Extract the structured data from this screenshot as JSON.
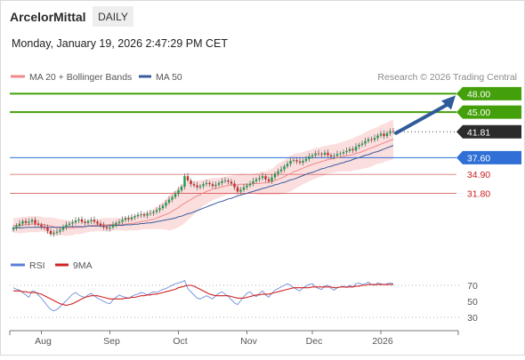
{
  "header": {
    "instrument": "ArcelorMittal",
    "period": "DAILY",
    "datetime": "Monday, January 19, 2026 2:47:29 PM CET"
  },
  "legend": {
    "ma20_label": "MA 20 + Bollinger Bands",
    "ma50_label": "MA 50",
    "credit": "Research © 2026 Trading Central",
    "rsi_label": "RSI",
    "rsi_ma_label": "9MA"
  },
  "colors": {
    "target_green": "#44a00a",
    "pivot_blue": "#2f6fd6",
    "support_red": "#c91d1d",
    "last_price_dark": "#2b2b2b",
    "ma20_red": "#f08a8a",
    "bollinger_fill": "#fbdada",
    "ma50_blue": "#3a5c9e",
    "arrow_blue": "#2f5b9a",
    "rsi_blue": "#5b7fd6",
    "rsi_ma_red": "#d22222",
    "candle_up": "#1e9b4a",
    "candle_down": "#cc2a2a"
  },
  "chart_data": [
    {
      "type": "candlestick",
      "title": "ArcelorMittal",
      "ylim": [
        22.5,
        49.5
      ],
      "x_tick_labels": [
        "Aug",
        "Sep",
        "Oct",
        "Nov",
        "Dec",
        "2026"
      ],
      "x_tick_positions": [
        9,
        31,
        53,
        75,
        96,
        118
      ],
      "close": [
        26.2,
        26.5,
        26.9,
        27.3,
        27.0,
        27.2,
        27.5,
        26.9,
        26.7,
        26.4,
        26.2,
        25.7,
        25.2,
        25.4,
        25.6,
        25.9,
        26.3,
        26.7,
        26.9,
        27.1,
        27.4,
        27.6,
        27.2,
        27.0,
        27.3,
        27.5,
        27.2,
        26.9,
        26.6,
        26.3,
        26.1,
        26.3,
        26.7,
        27.0,
        27.2,
        27.5,
        27.8,
        27.6,
        27.9,
        28.1,
        28.3,
        28.4,
        28.2,
        28.5,
        28.6,
        28.8,
        29.1,
        29.4,
        29.8,
        30.3,
        30.8,
        31.2,
        31.7,
        32.3,
        32.9,
        34.6,
        33.9,
        33.3,
        33.1,
        32.8,
        33.0,
        33.3,
        33.5,
        33.3,
        33.0,
        33.2,
        33.5,
        33.8,
        33.9,
        33.7,
        33.4,
        32.8,
        32.1,
        32.4,
        32.8,
        33.1,
        33.4,
        33.8,
        34.1,
        34.3,
        34.6,
        34.1,
        33.8,
        34.4,
        35.0,
        35.4,
        35.7,
        36.2,
        36.6,
        37.1,
        37.2,
        37.0,
        36.8,
        37.1,
        37.4,
        37.8,
        38.0,
        38.3,
        38.2,
        38.1,
        38.4,
        38.0,
        37.8,
        37.9,
        38.2,
        38.3,
        38.5,
        38.7,
        39.0,
        38.8,
        39.4,
        39.7,
        39.9,
        40.3,
        40.6,
        40.5,
        40.8,
        41.2,
        41.5,
        41.1,
        41.6,
        41.9,
        41.81
      ],
      "ma20": [
        26.6,
        26.6,
        26.6,
        26.7,
        26.7,
        26.8,
        26.8,
        26.8,
        26.8,
        26.8,
        26.7,
        26.6,
        26.5,
        26.4,
        26.3,
        26.3,
        26.3,
        26.2,
        26.2,
        26.2,
        26.3,
        26.3,
        26.3,
        26.4,
        26.5,
        26.6,
        26.6,
        26.7,
        26.7,
        26.7,
        26.7,
        26.7,
        26.8,
        26.8,
        26.8,
        26.8,
        26.8,
        26.9,
        26.9,
        27.0,
        27.1,
        27.2,
        27.3,
        27.4,
        27.5,
        27.6,
        27.8,
        28.0,
        28.2,
        28.4,
        28.6,
        28.9,
        29.2,
        29.5,
        29.9,
        30.2,
        30.5,
        30.8,
        31.1,
        31.4,
        31.6,
        31.9,
        32.1,
        32.3,
        32.5,
        32.6,
        32.7,
        32.9,
        33.0,
        33.1,
        33.2,
        33.2,
        33.2,
        33.3,
        33.3,
        33.3,
        33.3,
        33.4,
        33.4,
        33.4,
        33.5,
        33.5,
        33.6,
        33.7,
        33.9,
        34.1,
        34.3,
        34.5,
        34.8,
        35.0,
        35.3,
        35.5,
        35.7,
        35.9,
        36.1,
        36.3,
        36.5,
        36.7,
        36.8,
        37.0,
        37.1,
        37.3,
        37.4,
        37.5,
        37.6,
        37.7,
        37.8,
        37.9,
        38.0,
        38.1,
        38.3,
        38.4,
        38.6,
        38.8,
        39.0,
        39.2,
        39.4,
        39.6,
        39.8,
        40.0,
        40.2,
        40.4,
        40.6
      ],
      "ma50": [
        26.2,
        26.2,
        26.2,
        26.2,
        26.3,
        26.3,
        26.3,
        26.3,
        26.3,
        26.3,
        26.3,
        26.3,
        26.3,
        26.3,
        26.3,
        26.3,
        26.3,
        26.4,
        26.4,
        26.4,
        26.4,
        26.4,
        26.4,
        26.4,
        26.5,
        26.5,
        26.5,
        26.5,
        26.5,
        26.5,
        26.5,
        26.6,
        26.6,
        26.6,
        26.6,
        26.6,
        26.7,
        26.7,
        26.7,
        26.8,
        26.8,
        26.9,
        26.9,
        27.0,
        27.0,
        27.1,
        27.2,
        27.3,
        27.4,
        27.5,
        27.6,
        27.7,
        27.8,
        28.0,
        28.1,
        28.3,
        28.5,
        28.6,
        28.8,
        29.0,
        29.2,
        29.4,
        29.6,
        29.8,
        30.0,
        30.2,
        30.4,
        30.5,
        30.7,
        30.9,
        31.0,
        31.2,
        31.4,
        31.5,
        31.7,
        31.8,
        32.0,
        32.1,
        32.3,
        32.4,
        32.6,
        32.7,
        32.9,
        33.0,
        33.2,
        33.3,
        33.5,
        33.6,
        33.8,
        34.0,
        34.1,
        34.3,
        34.5,
        34.7,
        34.9,
        35.1,
        35.2,
        35.4,
        35.6,
        35.8,
        35.9,
        36.1,
        36.2,
        36.4,
        36.5,
        36.7,
        36.8,
        37.0,
        37.1,
        37.3,
        37.5,
        37.6,
        37.8,
        38.0,
        38.1,
        38.3,
        38.5,
        38.6,
        38.8,
        39.0,
        39.2,
        39.4,
        39.6
      ],
      "bollinger_halfwidth": [
        1.2,
        1.2,
        1.3,
        1.3,
        1.3,
        1.3,
        1.3,
        1.3,
        1.3,
        1.2,
        1.2,
        1.3,
        1.4,
        1.4,
        1.4,
        1.3,
        1.3,
        1.3,
        1.2,
        1.2,
        1.1,
        1.1,
        1.1,
        1.0,
        1.0,
        1.0,
        1.0,
        1.0,
        1.0,
        1.1,
        1.1,
        1.1,
        1.0,
        1.0,
        1.0,
        1.0,
        1.1,
        1.1,
        1.1,
        1.2,
        1.3,
        1.3,
        1.3,
        1.4,
        1.5,
        1.6,
        1.8,
        2.0,
        2.2,
        2.5,
        2.8,
        3.0,
        3.1,
        3.2,
        3.3,
        3.2,
        3.1,
        2.9,
        2.7,
        2.5,
        2.3,
        2.1,
        2.0,
        1.9,
        1.8,
        1.7,
        1.6,
        1.6,
        1.5,
        1.5,
        1.5,
        1.6,
        1.7,
        1.7,
        1.7,
        1.6,
        1.6,
        1.6,
        1.7,
        1.8,
        1.9,
        1.9,
        2.0,
        2.1,
        2.3,
        2.5,
        2.6,
        2.7,
        2.8,
        2.9,
        2.9,
        2.8,
        2.7,
        2.6,
        2.6,
        2.5,
        2.5,
        2.5,
        2.4,
        2.4,
        2.4,
        2.3,
        2.3,
        2.3,
        2.3,
        2.4,
        2.4,
        2.5,
        2.6,
        2.6,
        2.7,
        2.8,
        2.8,
        2.9,
        3.0,
        3.0,
        3.0,
        3.0,
        3.1,
        3.1,
        3.1,
        3.2,
        3.2
      ],
      "levels": [
        {
          "value": 48.0,
          "label": "48.00",
          "kind": "target"
        },
        {
          "value": 45.0,
          "label": "45.00",
          "kind": "target"
        },
        {
          "value": 41.81,
          "label": "41.81",
          "kind": "last"
        },
        {
          "value": 37.6,
          "label": "37.60",
          "kind": "pivot"
        },
        {
          "value": 34.9,
          "label": "34.90",
          "kind": "support"
        },
        {
          "value": 31.8,
          "label": "31.80",
          "kind": "support"
        }
      ],
      "arrow": {
        "from": 41.6,
        "to": 48.0,
        "direction": "up"
      }
    },
    {
      "type": "line",
      "title": "RSI",
      "ylim": [
        20,
        80
      ],
      "y_ticks": [
        70,
        50,
        30
      ],
      "series": [
        {
          "name": "RSI",
          "values": [
            67,
            65,
            64,
            61,
            58,
            55,
            63,
            62,
            58,
            54,
            49,
            44,
            40,
            38,
            40,
            43,
            47,
            51,
            55,
            59,
            61,
            58,
            56,
            55,
            58,
            60,
            57,
            54,
            52,
            50,
            48,
            47,
            52,
            55,
            58,
            56,
            55,
            54,
            56,
            58,
            59,
            61,
            60,
            58,
            60,
            62,
            61,
            63,
            65,
            66,
            68,
            70,
            72,
            73,
            74,
            76,
            66,
            62,
            58,
            54,
            53,
            55,
            57,
            55,
            53,
            57,
            60,
            62,
            59,
            56,
            52,
            48,
            46,
            51,
            56,
            60,
            62,
            58,
            56,
            60,
            63,
            58,
            55,
            60,
            64,
            66,
            68,
            70,
            72,
            70,
            67,
            65,
            63,
            67,
            69,
            71,
            72,
            68,
            66,
            65,
            69,
            70,
            66,
            64,
            67,
            68,
            69,
            67,
            70,
            68,
            72,
            73,
            71,
            72,
            74,
            71,
            70,
            73,
            72,
            71,
            72,
            73,
            72
          ]
        },
        {
          "name": "9MA",
          "values": [
            63,
            63,
            63,
            62,
            62,
            61,
            61,
            61,
            60,
            59,
            57,
            55,
            53,
            51,
            49,
            47,
            46,
            45,
            46,
            47,
            49,
            51,
            53,
            55,
            56,
            57,
            57,
            57,
            56,
            55,
            54,
            53,
            53,
            53,
            53,
            53,
            54,
            54,
            55,
            55,
            56,
            57,
            57,
            58,
            58,
            59,
            59,
            60,
            61,
            62,
            63,
            64,
            65,
            67,
            68,
            69,
            70,
            70,
            69,
            67,
            65,
            63,
            61,
            59,
            58,
            57,
            57,
            57,
            57,
            57,
            56,
            55,
            54,
            54,
            54,
            55,
            56,
            57,
            58,
            58,
            59,
            59,
            59,
            60,
            61,
            62,
            63,
            64,
            65,
            66,
            67,
            67,
            67,
            67,
            67,
            67,
            68,
            68,
            68,
            68,
            68,
            68,
            68,
            67,
            67,
            68,
            68,
            68,
            68,
            68,
            69,
            69,
            70,
            70,
            71,
            71,
            71,
            71,
            71,
            71,
            71,
            71,
            71
          ]
        }
      ]
    }
  ]
}
